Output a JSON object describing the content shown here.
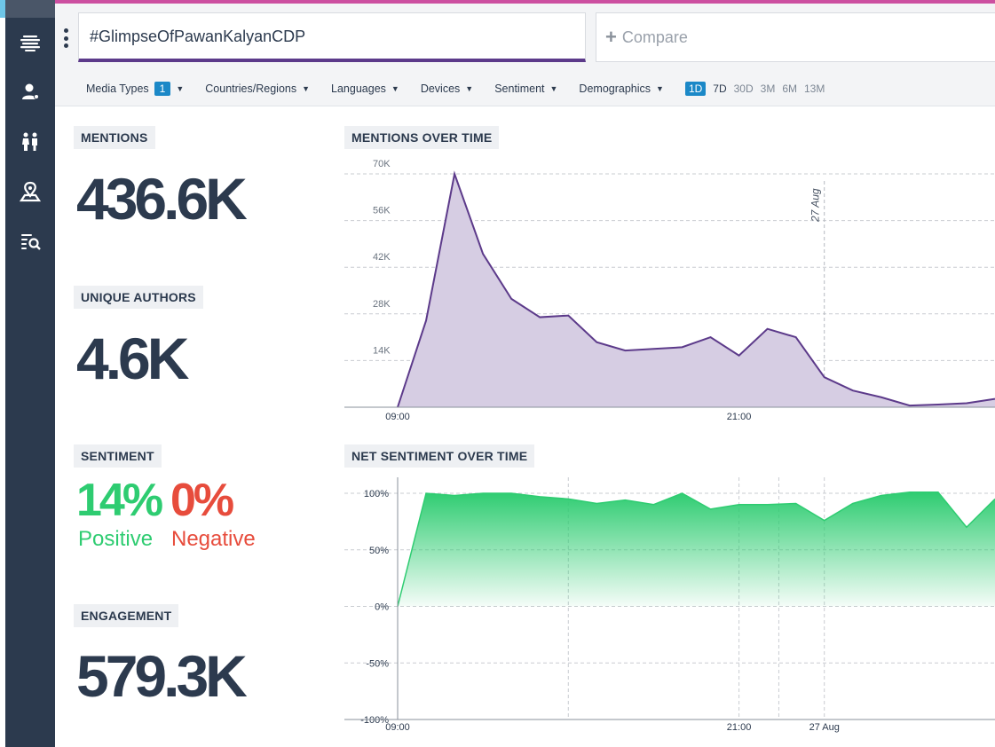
{
  "search": {
    "query": "#GlimpseOfPawanKalyanCDP",
    "compare_label": "Compare"
  },
  "filters": {
    "media_types": {
      "label": "Media Types",
      "count": "1"
    },
    "countries": "Countries/Regions",
    "languages": "Languages",
    "devices": "Devices",
    "sentiment": "Sentiment",
    "demographics": "Demographics"
  },
  "time_ranges": {
    "r1": "1D",
    "r2": "7D",
    "r3": "30D",
    "r4": "3M",
    "r5": "6M",
    "r6": "13M",
    "active": "1D"
  },
  "sidebar": {
    "icons": [
      "stream-icon",
      "user-settings-icon",
      "people-icon",
      "map-pin-icon",
      "list-search-icon"
    ]
  },
  "metrics": {
    "mentions": {
      "title": "MENTIONS",
      "value": "436.6K"
    },
    "unique_authors": {
      "title": "UNIQUE AUTHORS",
      "value": "4.6K"
    },
    "sentiment": {
      "title": "SENTIMENT",
      "positive_value": "14%",
      "positive_label": "Positive",
      "negative_value": "0%",
      "negative_label": "Negative"
    },
    "engagement": {
      "title": "ENGAGEMENT",
      "value": "579.3K"
    }
  },
  "colors": {
    "accent": "#cc4fa0",
    "brand": "#2c3a4e",
    "purple_line": "#5c3a8a",
    "purple_fill": "#d6cde3",
    "positive": "#2ecc71",
    "negative": "#e74c3c",
    "badge": "#1b88c7"
  },
  "chart_data": [
    {
      "type": "area",
      "title": "MENTIONS OVER TIME",
      "xlabel": "",
      "ylabel": "",
      "x_ticks": [
        "09:00",
        "21:00"
      ],
      "annotation": "27 Aug",
      "y_ticks": [
        "14K",
        "28K",
        "42K",
        "56K",
        "70K"
      ],
      "y_tick_values": [
        14000,
        28000,
        42000,
        56000,
        70000
      ],
      "ylim": [
        0,
        70000
      ],
      "x_index_range": [
        0,
        21
      ],
      "annotation_x": 15,
      "x_tick_positions": [
        0,
        12
      ],
      "x": [
        0,
        1,
        2,
        3,
        4,
        5,
        6,
        7,
        8,
        9,
        10,
        11,
        12,
        13,
        14,
        15,
        16,
        17,
        18,
        19,
        20,
        21
      ],
      "values": [
        0,
        26000,
        70000,
        46000,
        32500,
        27000,
        27500,
        19500,
        17000,
        17500,
        18000,
        21000,
        15500,
        23500,
        21000,
        9000,
        5000,
        3000,
        500,
        800,
        1200,
        2500
      ]
    },
    {
      "type": "area",
      "title": "NET SENTIMENT OVER TIME",
      "xlabel": "",
      "ylabel": "",
      "x_ticks": [
        "09:00",
        "21:00",
        "27 Aug"
      ],
      "x_tick_positions": [
        0,
        12,
        15
      ],
      "y_ticks": [
        "-100%",
        "-50%",
        "0%",
        "50%",
        "100%"
      ],
      "y_tick_values": [
        -100,
        -50,
        0,
        50,
        100
      ],
      "ylim": [
        -100,
        100
      ],
      "x_index_range": [
        0,
        21
      ],
      "x": [
        0,
        1,
        2,
        3,
        4,
        5,
        6,
        7,
        8,
        9,
        10,
        11,
        12,
        13,
        14,
        15,
        16,
        17,
        18,
        19,
        20,
        21
      ],
      "values": [
        0,
        100,
        98,
        100,
        100,
        97,
        95,
        91,
        94,
        90,
        100,
        86,
        90,
        90,
        91,
        76,
        91,
        98,
        101,
        101,
        70,
        95
      ]
    }
  ]
}
